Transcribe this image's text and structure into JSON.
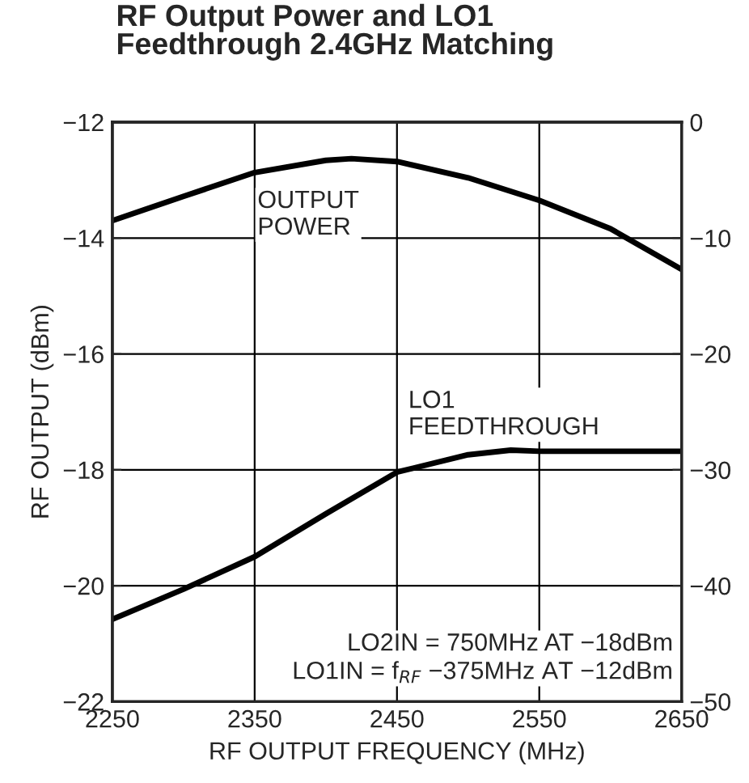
{
  "chart_data": {
    "type": "line",
    "title": "RF Output Power and LO1\nFeedthrough 2.4GHz Matching",
    "xlabel": "RF OUTPUT FREQUENCY (MHz)",
    "ylabel": "RF OUTPUT (dBm)",
    "xlim": [
      2250,
      2650
    ],
    "xticks": [
      2250,
      2350,
      2450,
      2550,
      2650
    ],
    "ylim": [
      -22,
      -12
    ],
    "yticks": [
      {
        "value": -22,
        "label": "−22"
      },
      {
        "value": -20,
        "label": "−20"
      },
      {
        "value": -18,
        "label": "−18"
      },
      {
        "value": -16,
        "label": "−16"
      },
      {
        "value": -14,
        "label": "−14"
      },
      {
        "value": -12,
        "label": "−12"
      }
    ],
    "y2lim": [
      -50,
      0
    ],
    "y2ticks": [
      {
        "value": -50,
        "label": "−50"
      },
      {
        "value": -40,
        "label": "−40"
      },
      {
        "value": -30,
        "label": "−30"
      },
      {
        "value": -20,
        "label": "−20"
      },
      {
        "value": -10,
        "label": "−10"
      },
      0
    ],
    "grid": true,
    "legend": false,
    "line_style": "solid",
    "marker": "none",
    "x": [
      2250,
      2300,
      2350,
      2400,
      2418,
      2450,
      2500,
      2550,
      2600,
      2650
    ],
    "series": [
      {
        "name": "OUTPUT\nPOWER",
        "color": "#000000",
        "values": [
          -13.7,
          -13.28,
          -12.87,
          -12.66,
          -12.63,
          -12.68,
          -12.96,
          -13.35,
          -13.84,
          -14.54
        ]
      },
      {
        "name": "LO1\nFEEDTHROUGH",
        "color": "#000000",
        "axis": "y2",
        "x": [
          2250,
          2300,
          2350,
          2400,
          2450,
          2500,
          2530,
          2550,
          2600,
          2650
        ],
        "values": [
          -42.9,
          -40.3,
          -37.5,
          -33.8,
          -30.2,
          -28.7,
          -28.3,
          -28.4,
          -28.4,
          -28.4
        ]
      }
    ],
    "annotations": [
      "LO2IN = 750MHz AT −18dBm\nLO1IN = f$_{RF}$ −375MHz AT −12dBm"
    ]
  }
}
